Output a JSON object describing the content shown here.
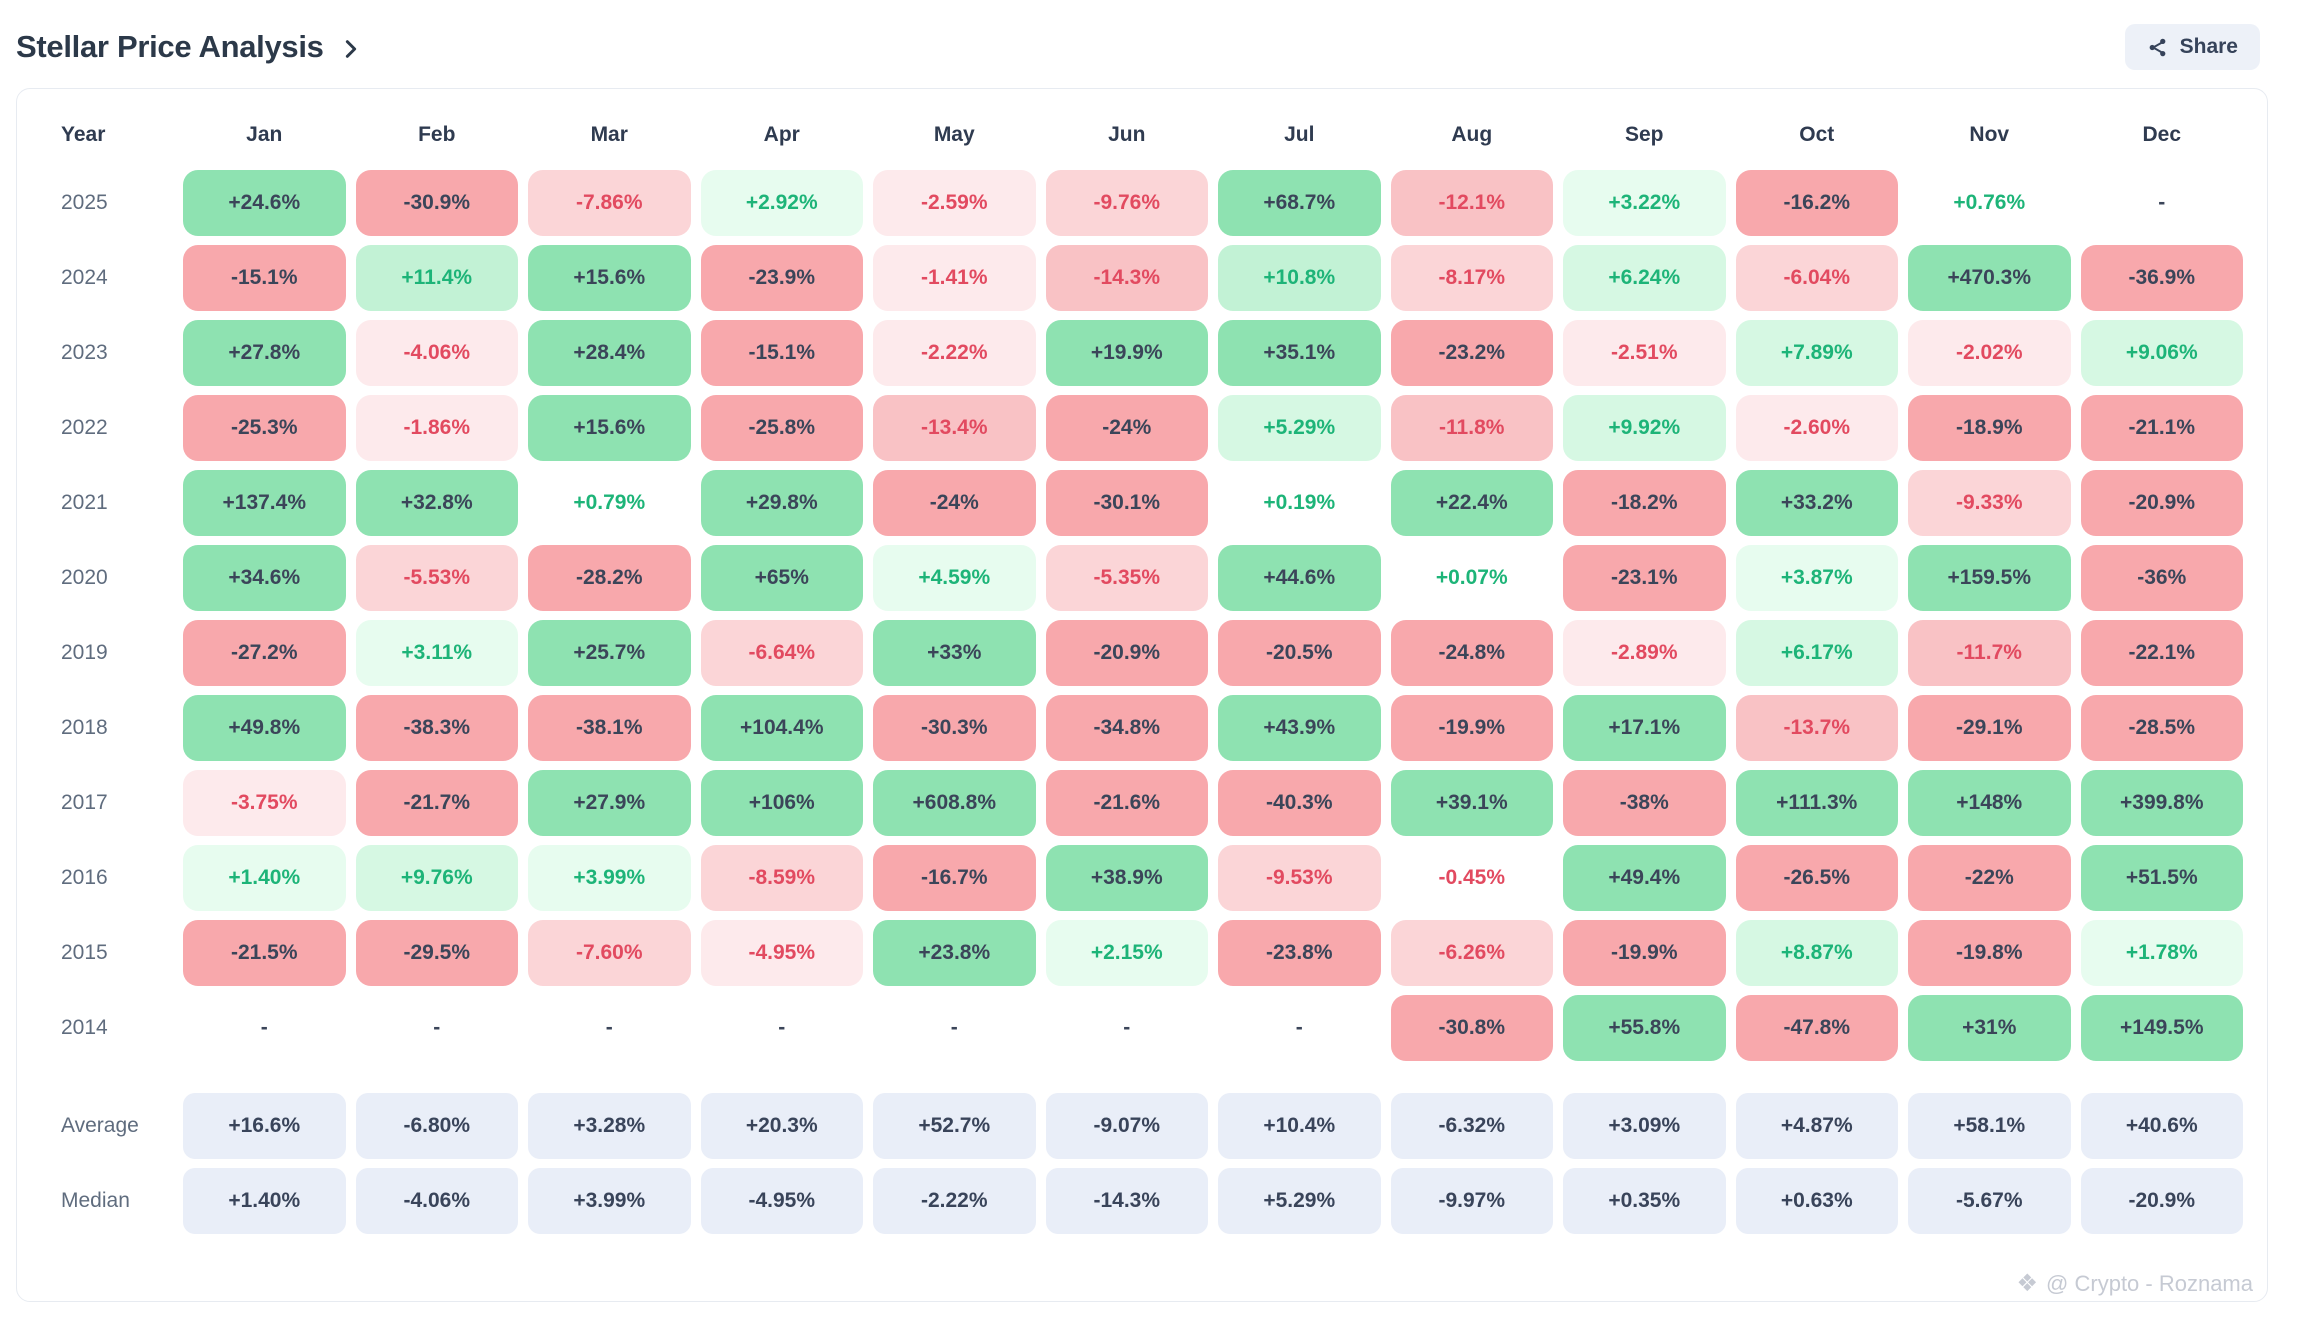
{
  "header": {
    "title": "Stellar Price Analysis",
    "share_label": "Share"
  },
  "table": {
    "columns": [
      "Year",
      "Jan",
      "Feb",
      "Mar",
      "Apr",
      "May",
      "Jun",
      "Jul",
      "Aug",
      "Sep",
      "Oct",
      "Nov",
      "Dec"
    ],
    "rows": [
      {
        "label": "2025",
        "values": [
          "+24.6%",
          "-30.9%",
          "-7.86%",
          "+2.92%",
          "-2.59%",
          "-9.76%",
          "+68.7%",
          "-12.1%",
          "+3.22%",
          "-16.2%",
          "+0.76%",
          "-"
        ]
      },
      {
        "label": "2024",
        "values": [
          "-15.1%",
          "+11.4%",
          "+15.6%",
          "-23.9%",
          "-1.41%",
          "-14.3%",
          "+10.8%",
          "-8.17%",
          "+6.24%",
          "-6.04%",
          "+470.3%",
          "-36.9%"
        ]
      },
      {
        "label": "2023",
        "values": [
          "+27.8%",
          "-4.06%",
          "+28.4%",
          "-15.1%",
          "-2.22%",
          "+19.9%",
          "+35.1%",
          "-23.2%",
          "-2.51%",
          "+7.89%",
          "-2.02%",
          "+9.06%"
        ]
      },
      {
        "label": "2022",
        "values": [
          "-25.3%",
          "-1.86%",
          "+15.6%",
          "-25.8%",
          "-13.4%",
          "-24%",
          "+5.29%",
          "-11.8%",
          "+9.92%",
          "-2.60%",
          "-18.9%",
          "-21.1%"
        ]
      },
      {
        "label": "2021",
        "values": [
          "+137.4%",
          "+32.8%",
          "+0.79%",
          "+29.8%",
          "-24%",
          "-30.1%",
          "+0.19%",
          "+22.4%",
          "-18.2%",
          "+33.2%",
          "-9.33%",
          "-20.9%"
        ]
      },
      {
        "label": "2020",
        "values": [
          "+34.6%",
          "-5.53%",
          "-28.2%",
          "+65%",
          "+4.59%",
          "-5.35%",
          "+44.6%",
          "+0.07%",
          "-23.1%",
          "+3.87%",
          "+159.5%",
          "-36%"
        ]
      },
      {
        "label": "2019",
        "values": [
          "-27.2%",
          "+3.11%",
          "+25.7%",
          "-6.64%",
          "+33%",
          "-20.9%",
          "-20.5%",
          "-24.8%",
          "-2.89%",
          "+6.17%",
          "-11.7%",
          "-22.1%"
        ]
      },
      {
        "label": "2018",
        "values": [
          "+49.8%",
          "-38.3%",
          "-38.1%",
          "+104.4%",
          "-30.3%",
          "-34.8%",
          "+43.9%",
          "-19.9%",
          "+17.1%",
          "-13.7%",
          "-29.1%",
          "-28.5%"
        ]
      },
      {
        "label": "2017",
        "values": [
          "-3.75%",
          "-21.7%",
          "+27.9%",
          "+106%",
          "+608.8%",
          "-21.6%",
          "-40.3%",
          "+39.1%",
          "-38%",
          "+111.3%",
          "+148%",
          "+399.8%"
        ]
      },
      {
        "label": "2016",
        "values": [
          "+1.40%",
          "+9.76%",
          "+3.99%",
          "-8.59%",
          "-16.7%",
          "+38.9%",
          "-9.53%",
          "-0.45%",
          "+49.4%",
          "-26.5%",
          "-22%",
          "+51.5%"
        ]
      },
      {
        "label": "2015",
        "values": [
          "-21.5%",
          "-29.5%",
          "-7.60%",
          "-4.95%",
          "+23.8%",
          "+2.15%",
          "-23.8%",
          "-6.26%",
          "-19.9%",
          "+8.87%",
          "-19.8%",
          "+1.78%"
        ]
      },
      {
        "label": "2014",
        "values": [
          "-",
          "-",
          "-",
          "-",
          "-",
          "-",
          "-",
          "-30.8%",
          "+55.8%",
          "-47.8%",
          "+31%",
          "+149.5%"
        ]
      }
    ],
    "summary_rows": [
      {
        "label": "Average",
        "values": [
          "+16.6%",
          "-6.80%",
          "+3.28%",
          "+20.3%",
          "+52.7%",
          "-9.07%",
          "+10.4%",
          "-6.32%",
          "+3.09%",
          "+4.87%",
          "+58.1%",
          "+40.6%"
        ]
      },
      {
        "label": "Median",
        "values": [
          "+1.40%",
          "-4.06%",
          "+3.99%",
          "-4.95%",
          "-2.22%",
          "-14.3%",
          "+5.29%",
          "-9.97%",
          "+0.35%",
          "+0.63%",
          "-5.67%",
          "-20.9%"
        ]
      }
    ]
  },
  "watermark": {
    "icon": "❖",
    "text": "@ Crypto - Roznama"
  },
  "colors": {
    "dark_text": "#3b4559",
    "positive_text": "#1db478",
    "negative_text": "#e24a60",
    "pos_bg": [
      "#ffffff",
      "#e7fcef",
      "#d6f8e3",
      "#c2f2d5",
      "#8ee2b1"
    ],
    "neg_bg": [
      "#ffffff",
      "#fdeaec",
      "#fbd5d7",
      "#f9c2c5",
      "#f8a8ac"
    ],
    "summary_bg": "#e9eef8",
    "summary_text": "#39445a"
  },
  "chart_data": {
    "type": "heatmap",
    "title": "Stellar Price Analysis",
    "columns": [
      "Jan",
      "Feb",
      "Mar",
      "Apr",
      "May",
      "Jun",
      "Jul",
      "Aug",
      "Sep",
      "Oct",
      "Nov",
      "Dec"
    ],
    "rows": [
      "2025",
      "2024",
      "2023",
      "2022",
      "2021",
      "2020",
      "2019",
      "2018",
      "2017",
      "2016",
      "2015",
      "2014",
      "Average",
      "Median"
    ],
    "values_pct": [
      [
        24.6,
        -30.9,
        -7.86,
        2.92,
        -2.59,
        -9.76,
        68.7,
        -12.1,
        3.22,
        -16.2,
        0.76,
        null
      ],
      [
        -15.1,
        11.4,
        15.6,
        -23.9,
        -1.41,
        -14.3,
        10.8,
        -8.17,
        6.24,
        -6.04,
        470.3,
        -36.9
      ],
      [
        27.8,
        -4.06,
        28.4,
        -15.1,
        -2.22,
        19.9,
        35.1,
        -23.2,
        -2.51,
        7.89,
        -2.02,
        9.06
      ],
      [
        -25.3,
        -1.86,
        15.6,
        -25.8,
        -13.4,
        -24,
        5.29,
        -11.8,
        9.92,
        -2.6,
        -18.9,
        -21.1
      ],
      [
        137.4,
        32.8,
        0.79,
        29.8,
        -24,
        -30.1,
        0.19,
        22.4,
        -18.2,
        33.2,
        -9.33,
        -20.9
      ],
      [
        34.6,
        -5.53,
        -28.2,
        65,
        4.59,
        -5.35,
        44.6,
        0.07,
        -23.1,
        3.87,
        159.5,
        -36
      ],
      [
        -27.2,
        3.11,
        25.7,
        -6.64,
        33,
        -20.9,
        -20.5,
        -24.8,
        -2.89,
        6.17,
        -11.7,
        -22.1
      ],
      [
        49.8,
        -38.3,
        -38.1,
        104.4,
        -30.3,
        -34.8,
        43.9,
        -19.9,
        17.1,
        -13.7,
        -29.1,
        -28.5
      ],
      [
        -3.75,
        -21.7,
        27.9,
        106,
        608.8,
        -21.6,
        -40.3,
        39.1,
        -38,
        111.3,
        148,
        399.8
      ],
      [
        1.4,
        9.76,
        3.99,
        -8.59,
        -16.7,
        38.9,
        -9.53,
        -0.45,
        49.4,
        -26.5,
        -22,
        51.5
      ],
      [
        -21.5,
        -29.5,
        -7.6,
        -4.95,
        23.8,
        2.15,
        -23.8,
        -6.26,
        -19.9,
        8.87,
        -19.8,
        1.78
      ],
      [
        null,
        null,
        null,
        null,
        null,
        null,
        null,
        -30.8,
        55.8,
        -47.8,
        31,
        149.5
      ],
      [
        16.6,
        -6.8,
        3.28,
        20.3,
        52.7,
        -9.07,
        10.4,
        -6.32,
        3.09,
        4.87,
        58.1,
        40.6
      ],
      [
        1.4,
        -4.06,
        3.99,
        -4.95,
        -2.22,
        -14.3,
        5.29,
        -9.97,
        0.35,
        0.63,
        -5.67,
        -20.9
      ]
    ],
    "legend": "green = positive monthly return, red = negative, blue-gray = summary rows, white = near zero"
  }
}
